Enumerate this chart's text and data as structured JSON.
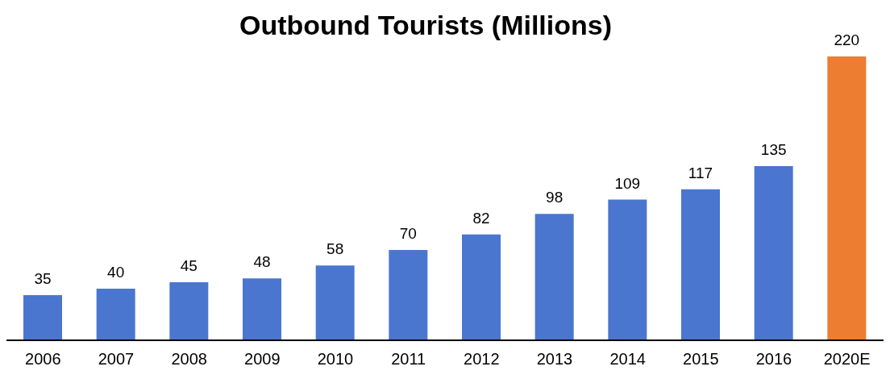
{
  "chart_data": {
    "type": "bar",
    "title": "Outbound Tourists (Millions)",
    "categories": [
      "2006",
      "2007",
      "2008",
      "2009",
      "2010",
      "2011",
      "2012",
      "2013",
      "2014",
      "2015",
      "2016",
      "2020E"
    ],
    "values": [
      35,
      40,
      45,
      48,
      58,
      70,
      82,
      98,
      109,
      117,
      135,
      220
    ],
    "colors": [
      "#4a76cf",
      "#4a76cf",
      "#4a76cf",
      "#4a76cf",
      "#4a76cf",
      "#4a76cf",
      "#4a76cf",
      "#4a76cf",
      "#4a76cf",
      "#4a76cf",
      "#4a76cf",
      "#ed7d31"
    ],
    "data_labels": true
  }
}
